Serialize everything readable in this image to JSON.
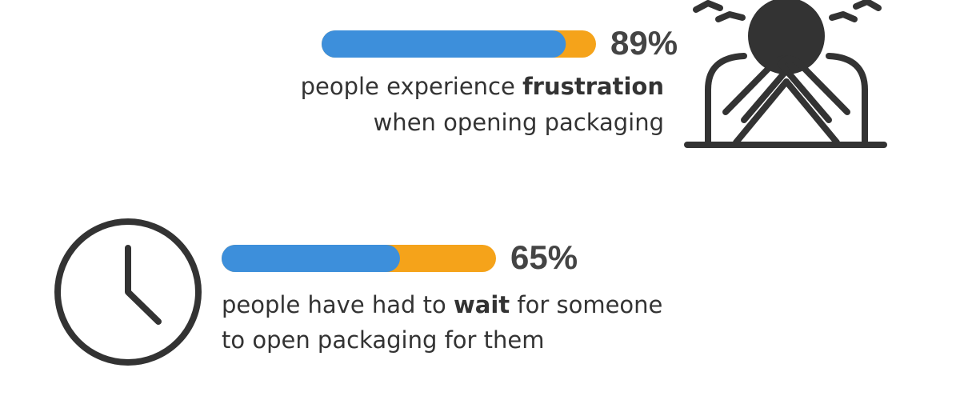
{
  "scale": [
    0,
    100
  ],
  "colors": {
    "fill": "#3d8fdb",
    "track": "#f5a31a"
  },
  "stats": [
    {
      "value": 89,
      "label": "89%",
      "lines": [
        [
          {
            "text": "people experience "
          },
          {
            "text": "frustration",
            "bold": true
          }
        ],
        [
          {
            "text": "when opening packaging"
          }
        ]
      ]
    },
    {
      "value": 65,
      "label": "65%",
      "lines": [
        [
          {
            "text": "people have had to "
          },
          {
            "text": "wait",
            "bold": true
          },
          {
            "text": " for someone"
          }
        ],
        [
          {
            "text": "to open packaging for them"
          }
        ]
      ]
    }
  ]
}
